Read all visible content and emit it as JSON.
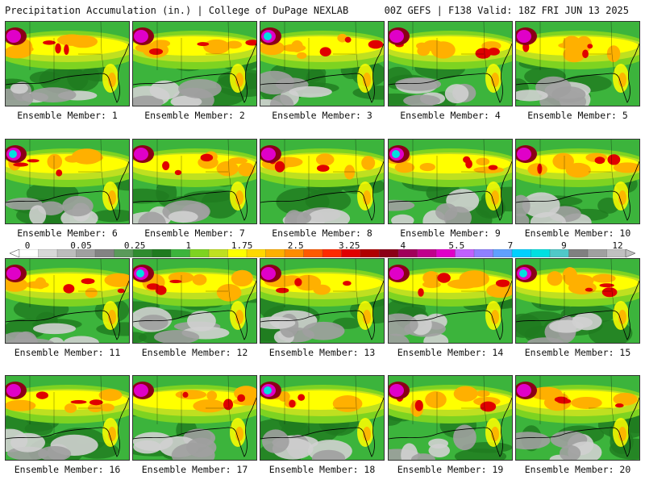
{
  "header": {
    "left": "Precipitation Accumulation (in.) | College of DuPage NEXLAB",
    "right": "00Z GEFS | F138 Valid: 18Z FRI JUN 13 2025"
  },
  "colorbar": {
    "labels": [
      "0",
      "0.05",
      "0.25",
      "1",
      "1.75",
      "2.5",
      "3.25",
      "4",
      "5.5",
      "7",
      "9",
      "12"
    ],
    "colors": [
      "#ffffff",
      "#d8d8d8",
      "#bdbdbd",
      "#a0a0a0",
      "#838383",
      "#5a9a5a",
      "#2e8b2e",
      "#1f7a1f",
      "#3cb43c",
      "#7ed321",
      "#bfe020",
      "#ffff00",
      "#ffd800",
      "#ffb000",
      "#ff8c00",
      "#ff5a00",
      "#ff2a00",
      "#e00000",
      "#b00000",
      "#8b0016",
      "#a0005a",
      "#c0008c",
      "#e000c8",
      "#c060ff",
      "#8f80ff",
      "#60a0ff",
      "#00d0ff",
      "#00e0e0",
      "#50c8c8",
      "#808080",
      "#a0a0a0",
      "#c0c0c0"
    ]
  },
  "members": [
    {
      "label": "Ensemble Member: 1"
    },
    {
      "label": "Ensemble Member: 2"
    },
    {
      "label": "Ensemble Member: 3"
    },
    {
      "label": "Ensemble Member: 4"
    },
    {
      "label": "Ensemble Member: 5"
    },
    {
      "label": "Ensemble Member: 6"
    },
    {
      "label": "Ensemble Member: 7"
    },
    {
      "label": "Ensemble Member: 8"
    },
    {
      "label": "Ensemble Member: 9"
    },
    {
      "label": "Ensemble Member: 10"
    },
    {
      "label": "Ensemble Member: 11"
    },
    {
      "label": "Ensemble Member: 12"
    },
    {
      "label": "Ensemble Member: 13"
    },
    {
      "label": "Ensemble Member: 14"
    },
    {
      "label": "Ensemble Member: 15"
    },
    {
      "label": "Ensemble Member: 16"
    },
    {
      "label": "Ensemble Member: 17"
    },
    {
      "label": "Ensemble Member: 18"
    },
    {
      "label": "Ensemble Member: 19"
    },
    {
      "label": "Ensemble Member: 20"
    }
  ],
  "palette": {
    "green_dark": "#1f7a1f",
    "green": "#3cb43c",
    "green_light": "#7ed321",
    "yellow_green": "#bfe020",
    "yellow": "#ffff00",
    "orange": "#ffb000",
    "red": "#e00000",
    "maroon": "#8b0016",
    "magenta": "#e000c8",
    "cyan": "#00e0e0",
    "gray": "#a0a0a0",
    "gray_light": "#d0d0d0"
  }
}
